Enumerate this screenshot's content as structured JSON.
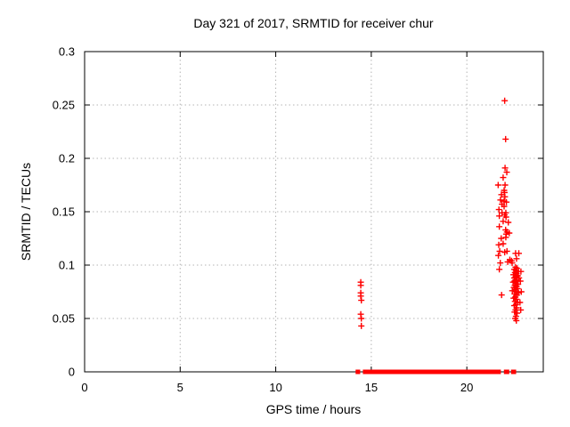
{
  "chart_data": {
    "type": "scatter",
    "title": "Day 321 of 2017, SRMTID for receiver chur",
    "xlabel": "GPS time / hours",
    "ylabel": "SRMTID / TECUs",
    "xlim": [
      0,
      24
    ],
    "ylim": [
      0,
      0.3
    ],
    "xticks": {
      "values": [
        0,
        5,
        10,
        15,
        20
      ],
      "labels": [
        "0",
        "5",
        "10",
        "15",
        "20"
      ]
    },
    "yticks": {
      "values": [
        0,
        0.05,
        0.1,
        0.15,
        0.2,
        0.25,
        0.3
      ],
      "labels": [
        "0",
        "0.05",
        "0.1",
        "0.15",
        "0.2",
        "0.25",
        "0.3"
      ]
    },
    "grid": true,
    "legend_position": "none",
    "marker": {
      "shape": "plus",
      "color": "#ff0000",
      "size": 7
    },
    "baseline_y": 0,
    "baseline_segments": [
      [
        14.18,
        14.42
      ],
      [
        14.56,
        21.78
      ],
      [
        21.94,
        22.22
      ],
      [
        22.31,
        22.58
      ]
    ],
    "series": [
      {
        "name": "SRMTID",
        "points": [
          [
            14.45,
            0.084
          ],
          [
            14.45,
            0.081
          ],
          [
            14.45,
            0.074
          ],
          [
            14.45,
            0.071
          ],
          [
            14.48,
            0.067
          ],
          [
            14.45,
            0.054
          ],
          [
            14.48,
            0.05
          ],
          [
            14.48,
            0.043
          ],
          [
            21.98,
            0.254
          ],
          [
            22.03,
            0.218
          ],
          [
            22.0,
            0.191
          ],
          [
            22.09,
            0.187
          ],
          [
            21.9,
            0.182
          ],
          [
            21.64,
            0.175
          ],
          [
            22.0,
            0.175
          ],
          [
            21.95,
            0.17
          ],
          [
            21.97,
            0.168
          ],
          [
            21.81,
            0.166
          ],
          [
            21.99,
            0.164
          ],
          [
            21.76,
            0.161
          ],
          [
            21.95,
            0.16
          ],
          [
            22.07,
            0.159
          ],
          [
            21.84,
            0.157
          ],
          [
            21.95,
            0.155
          ],
          [
            21.68,
            0.152
          ],
          [
            21.84,
            0.149
          ],
          [
            22.04,
            0.149
          ],
          [
            21.98,
            0.147
          ],
          [
            21.7,
            0.146
          ],
          [
            22.05,
            0.145
          ],
          [
            21.9,
            0.141
          ],
          [
            22.17,
            0.14
          ],
          [
            21.7,
            0.136
          ],
          [
            22.03,
            0.133
          ],
          [
            22.1,
            0.131
          ],
          [
            22.06,
            0.129
          ],
          [
            22.22,
            0.13
          ],
          [
            21.8,
            0.125
          ],
          [
            22.04,
            0.126
          ],
          [
            21.67,
            0.119
          ],
          [
            21.9,
            0.12
          ],
          [
            21.72,
            0.113
          ],
          [
            21.98,
            0.112
          ],
          [
            22.1,
            0.113
          ],
          [
            21.65,
            0.109
          ],
          [
            22.55,
            0.111
          ],
          [
            22.72,
            0.111
          ],
          [
            21.75,
            0.102
          ],
          [
            22.14,
            0.103
          ],
          [
            22.37,
            0.102
          ],
          [
            21.7,
            0.096
          ],
          [
            22.25,
            0.105
          ],
          [
            22.34,
            0.104
          ],
          [
            22.6,
            0.106
          ],
          [
            21.82,
            0.072
          ],
          [
            22.55,
            0.098
          ],
          [
            22.62,
            0.097
          ],
          [
            22.48,
            0.096
          ],
          [
            22.57,
            0.095
          ],
          [
            22.7,
            0.094
          ],
          [
            22.83,
            0.094
          ],
          [
            22.52,
            0.093
          ],
          [
            22.6,
            0.092
          ],
          [
            22.44,
            0.091
          ],
          [
            22.66,
            0.09
          ],
          [
            22.55,
            0.089
          ],
          [
            22.48,
            0.088
          ],
          [
            22.73,
            0.088
          ],
          [
            22.58,
            0.086
          ],
          [
            22.8,
            0.085
          ],
          [
            22.5,
            0.085
          ],
          [
            22.63,
            0.085
          ],
          [
            22.42,
            0.084
          ],
          [
            22.56,
            0.083
          ],
          [
            22.68,
            0.082
          ],
          [
            22.51,
            0.081
          ],
          [
            22.6,
            0.08
          ],
          [
            22.46,
            0.079
          ],
          [
            22.65,
            0.078
          ],
          [
            22.55,
            0.077
          ],
          [
            22.38,
            0.076
          ],
          [
            22.85,
            0.075
          ],
          [
            22.58,
            0.075
          ],
          [
            22.7,
            0.074
          ],
          [
            22.5,
            0.073
          ],
          [
            22.62,
            0.072
          ],
          [
            22.54,
            0.07
          ],
          [
            22.45,
            0.069
          ],
          [
            22.6,
            0.068
          ],
          [
            22.78,
            0.065
          ],
          [
            22.52,
            0.066
          ],
          [
            22.66,
            0.065
          ],
          [
            22.57,
            0.063
          ],
          [
            22.48,
            0.062
          ],
          [
            22.61,
            0.06
          ],
          [
            22.55,
            0.058
          ],
          [
            22.82,
            0.058
          ],
          [
            22.5,
            0.056
          ],
          [
            22.63,
            0.055
          ],
          [
            22.57,
            0.052
          ],
          [
            22.53,
            0.05
          ],
          [
            22.59,
            0.048
          ]
        ]
      }
    ]
  },
  "colors": {
    "marker": "#ff0000",
    "grid": "#b4b4b4",
    "border": "#000000",
    "background": "#ffffff",
    "text": "#000000"
  }
}
